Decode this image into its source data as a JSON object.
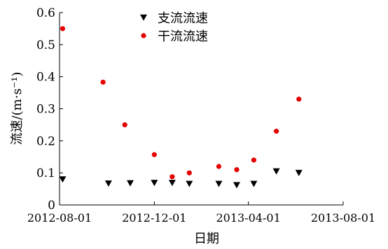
{
  "chart_data": {
    "type": "scatter",
    "title": "",
    "xlabel": "日期",
    "ylabel": "流速/(m·s⁻¹)",
    "x_ticks": [
      "2012-08-01",
      "2012-12-01",
      "2013-04-01",
      "2013-08-01"
    ],
    "xlim": [
      "2012-08-01",
      "2013-08-01"
    ],
    "y_ticks": [
      "0",
      "0.1",
      "0.2",
      "0.3",
      "0.4",
      "0.5",
      "0.6"
    ],
    "ylim": [
      0,
      0.6
    ],
    "grid": false,
    "legend_position": "top-center",
    "series": [
      {
        "name": "支流流速",
        "marker": "triangle-down",
        "color": "#000000",
        "points": [
          {
            "x": "2012-08-05",
            "y": 0.08
          },
          {
            "x": "2012-10-03",
            "y": 0.067
          },
          {
            "x": "2012-10-31",
            "y": 0.068
          },
          {
            "x": "2012-12-01",
            "y": 0.069
          },
          {
            "x": "2012-12-24",
            "y": 0.069
          },
          {
            "x": "2013-01-15",
            "y": 0.066
          },
          {
            "x": "2013-02-22",
            "y": 0.066
          },
          {
            "x": "2013-03-17",
            "y": 0.062
          },
          {
            "x": "2013-04-08",
            "y": 0.066
          },
          {
            "x": "2013-05-07",
            "y": 0.105
          },
          {
            "x": "2013-06-05",
            "y": 0.1
          }
        ]
      },
      {
        "name": "干流流速",
        "marker": "circle",
        "color": "#e60000",
        "points": [
          {
            "x": "2012-08-05",
            "y": 0.55
          },
          {
            "x": "2012-09-26",
            "y": 0.383
          },
          {
            "x": "2012-10-24",
            "y": 0.25
          },
          {
            "x": "2012-12-01",
            "y": 0.157
          },
          {
            "x": "2012-12-24",
            "y": 0.088
          },
          {
            "x": "2013-01-15",
            "y": 0.1
          },
          {
            "x": "2013-02-22",
            "y": 0.12
          },
          {
            "x": "2013-03-17",
            "y": 0.11
          },
          {
            "x": "2013-04-08",
            "y": 0.14
          },
          {
            "x": "2013-05-07",
            "y": 0.23
          },
          {
            "x": "2013-06-05",
            "y": 0.33
          }
        ]
      }
    ]
  }
}
